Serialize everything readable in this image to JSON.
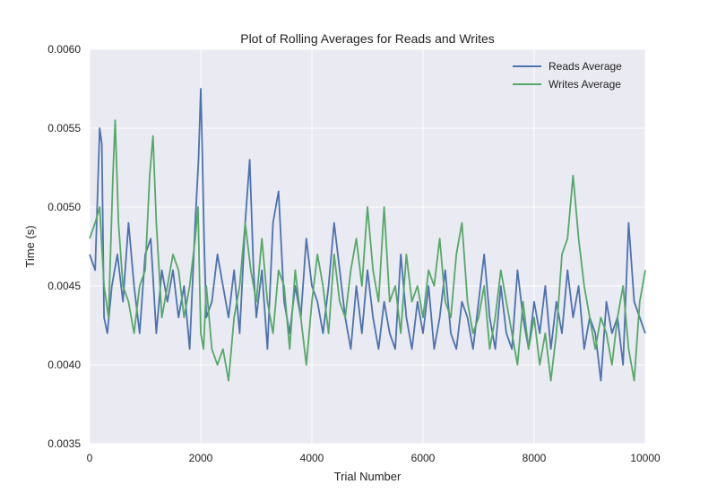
{
  "chart_data": {
    "type": "line",
    "title": "Plot of Rolling Averages for Reads and Writes",
    "xlabel": "Trial Number",
    "ylabel": "Time (s)",
    "xlim": [
      0,
      10000
    ],
    "ylim": [
      0.0035,
      0.006
    ],
    "x_ticks": [
      "0",
      "2000",
      "4000",
      "6000",
      "8000",
      "10000"
    ],
    "y_ticks": [
      "0.0035",
      "0.0040",
      "0.0045",
      "0.0050",
      "0.0055",
      "0.0060"
    ],
    "grid": true,
    "legend_position": "top-right",
    "background": "#eaeaf2",
    "series": [
      {
        "name": "Reads Average",
        "color": "#4c72b0",
        "x": [
          0,
          100,
          180,
          220,
          260,
          320,
          400,
          500,
          600,
          700,
          800,
          900,
          1000,
          1100,
          1200,
          1300,
          1400,
          1500,
          1600,
          1700,
          1800,
          1900,
          1960,
          2000,
          2030,
          2060,
          2100,
          2200,
          2300,
          2400,
          2500,
          2600,
          2700,
          2800,
          2880,
          2950,
          3000,
          3100,
          3200,
          3300,
          3400,
          3500,
          3600,
          3700,
          3800,
          3900,
          4000,
          4100,
          4200,
          4300,
          4400,
          4500,
          4600,
          4700,
          4800,
          4900,
          5000,
          5100,
          5200,
          5300,
          5400,
          5500,
          5600,
          5700,
          5800,
          5900,
          6000,
          6100,
          6200,
          6300,
          6400,
          6500,
          6600,
          6700,
          6800,
          6900,
          7000,
          7100,
          7200,
          7300,
          7400,
          7500,
          7600,
          7700,
          7800,
          7900,
          8000,
          8100,
          8200,
          8300,
          8400,
          8500,
          8600,
          8700,
          8800,
          8900,
          9000,
          9100,
          9200,
          9300,
          9400,
          9500,
          9600,
          9700,
          9800,
          9900,
          10000
        ],
        "values": [
          0.0047,
          0.0046,
          0.0055,
          0.0054,
          0.0043,
          0.0042,
          0.0045,
          0.0047,
          0.0044,
          0.0049,
          0.0045,
          0.0042,
          0.0047,
          0.0048,
          0.0042,
          0.0046,
          0.0044,
          0.0046,
          0.0043,
          0.0045,
          0.0041,
          0.0049,
          0.0053,
          0.00575,
          0.0053,
          0.0048,
          0.0043,
          0.0044,
          0.0047,
          0.0045,
          0.0043,
          0.0046,
          0.0042,
          0.0049,
          0.0053,
          0.0046,
          0.0043,
          0.0046,
          0.0041,
          0.0049,
          0.0051,
          0.0044,
          0.0042,
          0.0045,
          0.0043,
          0.0048,
          0.0045,
          0.0044,
          0.0042,
          0.0045,
          0.0049,
          0.0046,
          0.0043,
          0.0041,
          0.0045,
          0.0042,
          0.0046,
          0.0043,
          0.0041,
          0.0044,
          0.0042,
          0.0041,
          0.0047,
          0.0043,
          0.0041,
          0.0044,
          0.0042,
          0.0045,
          0.0041,
          0.0043,
          0.0046,
          0.0042,
          0.0041,
          0.0044,
          0.0043,
          0.0041,
          0.0044,
          0.0047,
          0.0043,
          0.0041,
          0.0045,
          0.0042,
          0.0041,
          0.0046,
          0.0043,
          0.0041,
          0.0044,
          0.0042,
          0.0045,
          0.0041,
          0.0044,
          0.0042,
          0.0046,
          0.0043,
          0.0045,
          0.0041,
          0.0043,
          0.0042,
          0.0039,
          0.0044,
          0.0042,
          0.0043,
          0.004,
          0.0049,
          0.0044,
          0.0043,
          0.0042
        ]
      },
      {
        "name": "Writes Average",
        "color": "#55a868",
        "x": [
          0,
          100,
          180,
          260,
          340,
          420,
          460,
          520,
          600,
          700,
          800,
          900,
          1000,
          1080,
          1140,
          1200,
          1300,
          1400,
          1500,
          1600,
          1700,
          1800,
          1900,
          1950,
          2000,
          2050,
          2100,
          2200,
          2300,
          2400,
          2500,
          2600,
          2700,
          2800,
          2900,
          3000,
          3100,
          3200,
          3300,
          3400,
          3500,
          3600,
          3700,
          3800,
          3900,
          4000,
          4100,
          4200,
          4300,
          4400,
          4500,
          4600,
          4700,
          4800,
          4900,
          5000,
          5100,
          5200,
          5300,
          5400,
          5500,
          5600,
          5700,
          5800,
          5900,
          6000,
          6100,
          6200,
          6300,
          6400,
          6500,
          6600,
          6700,
          6800,
          6900,
          7000,
          7100,
          7200,
          7300,
          7400,
          7500,
          7600,
          7700,
          7800,
          7900,
          8000,
          8100,
          8200,
          8300,
          8400,
          8500,
          8600,
          8650,
          8700,
          8800,
          8900,
          9000,
          9100,
          9200,
          9300,
          9400,
          9500,
          9600,
          9700,
          9800,
          9900,
          10000
        ],
        "values": [
          0.0048,
          0.0049,
          0.005,
          0.0045,
          0.0043,
          0.0052,
          0.00555,
          0.0049,
          0.0045,
          0.0044,
          0.0042,
          0.0045,
          0.0046,
          0.0052,
          0.00545,
          0.0049,
          0.0043,
          0.0045,
          0.0047,
          0.0046,
          0.0043,
          0.0045,
          0.0048,
          0.005,
          0.0042,
          0.0041,
          0.0045,
          0.0041,
          0.004,
          0.0041,
          0.0039,
          0.0043,
          0.0045,
          0.0049,
          0.0046,
          0.0044,
          0.0048,
          0.0044,
          0.0042,
          0.0046,
          0.0045,
          0.0041,
          0.0046,
          0.0043,
          0.004,
          0.0044,
          0.0047,
          0.0045,
          0.0042,
          0.0047,
          0.0044,
          0.0043,
          0.0046,
          0.0048,
          0.0045,
          0.005,
          0.0046,
          0.0044,
          0.005,
          0.0044,
          0.0045,
          0.0042,
          0.0047,
          0.0044,
          0.0045,
          0.0043,
          0.0046,
          0.0045,
          0.0048,
          0.0044,
          0.0043,
          0.0047,
          0.0049,
          0.0044,
          0.0042,
          0.0043,
          0.0045,
          0.0041,
          0.0043,
          0.0046,
          0.0044,
          0.0042,
          0.004,
          0.0044,
          0.0041,
          0.0043,
          0.004,
          0.0042,
          0.0039,
          0.0042,
          0.0047,
          0.0048,
          0.005,
          0.0052,
          0.0048,
          0.0045,
          0.0043,
          0.0041,
          0.0043,
          0.0042,
          0.004,
          0.0043,
          0.0045,
          0.0041,
          0.0039,
          0.0044,
          0.0046
        ]
      }
    ]
  }
}
